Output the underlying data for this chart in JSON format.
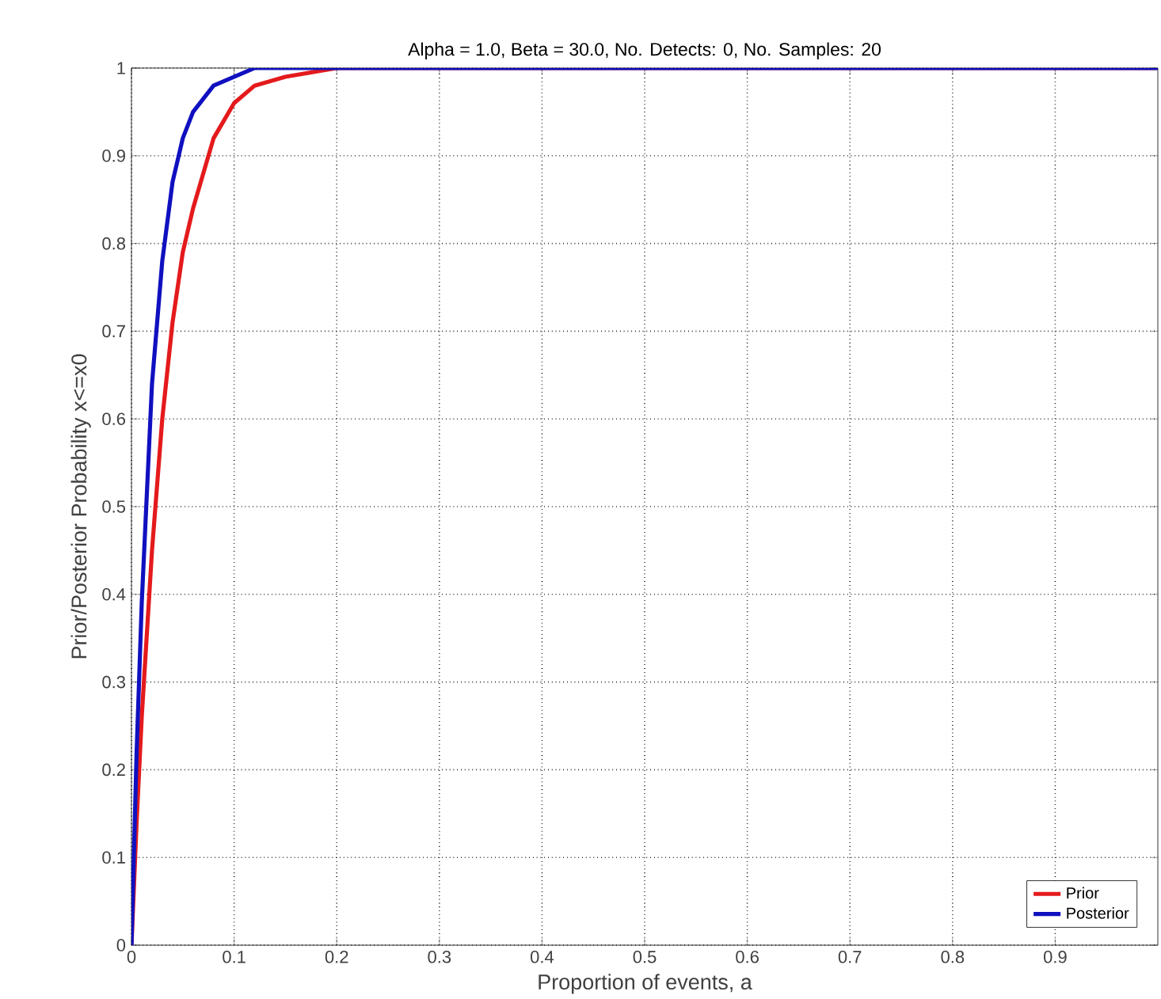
{
  "chart_data": {
    "type": "line",
    "title": "Alpha =  1.0, Beta = 30.0, No. Detects:   0, No. Samples:  20",
    "xlabel": "Proportion of events, a",
    "ylabel": "Prior/Posterior Probability x<=x0",
    "xlim": [
      0,
      1
    ],
    "ylim": [
      0,
      1
    ],
    "xticks": [
      0,
      0.1,
      0.2,
      0.3,
      0.4,
      0.5,
      0.6,
      0.7,
      0.8,
      0.9
    ],
    "yticks": [
      0,
      0.1,
      0.2,
      0.3,
      0.4,
      0.5,
      0.6,
      0.7,
      0.8,
      0.9,
      1
    ],
    "grid": true,
    "legend": "bottom right",
    "marker": "none",
    "line_style": "solid",
    "series": [
      {
        "name": "Prior",
        "color": "#e41a1c",
        "x": [
          0,
          0.005,
          0.01,
          0.02,
          0.03,
          0.04,
          0.05,
          0.06,
          0.08,
          0.1,
          0.12,
          0.15,
          0.2,
          1
        ],
        "values": [
          0,
          0.14,
          0.26,
          0.45,
          0.6,
          0.71,
          0.79,
          0.84,
          0.92,
          0.96,
          0.98,
          0.99,
          1,
          1
        ]
      },
      {
        "name": "Posterior",
        "color": "#1010c0",
        "x": [
          0,
          0.005,
          0.01,
          0.02,
          0.03,
          0.04,
          0.05,
          0.06,
          0.08,
          0.1,
          0.12,
          1
        ],
        "values": [
          0,
          0.22,
          0.39,
          0.64,
          0.78,
          0.87,
          0.92,
          0.95,
          0.98,
          0.99,
          1,
          1
        ]
      }
    ]
  }
}
